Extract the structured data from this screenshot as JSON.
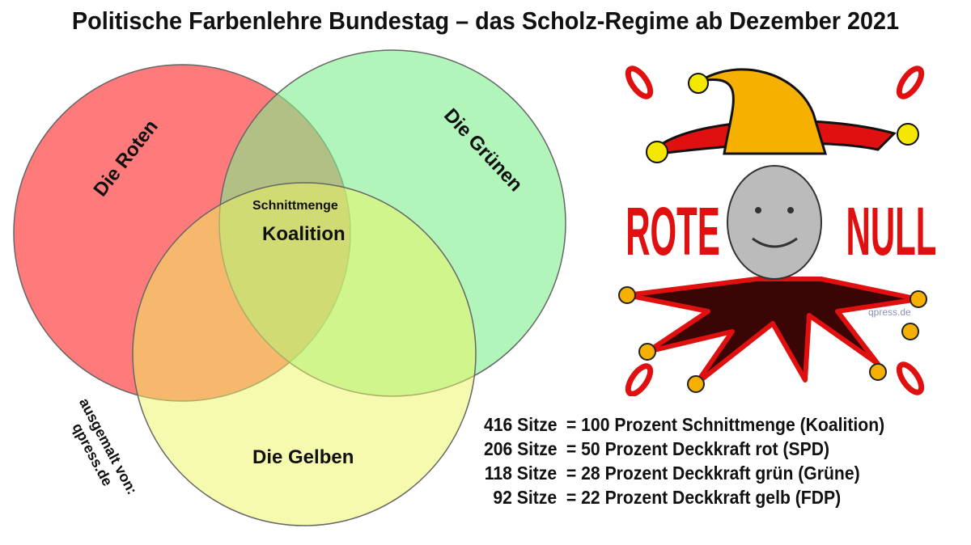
{
  "title": "Politische Farbenlehre Bundestag – das Scholz-Regime ab Dezember 2021",
  "venn": {
    "sets": [
      {
        "label": "Die Roten",
        "color": "#ff5a5a"
      },
      {
        "label": "Die Grünen",
        "color": "#8ef29a"
      },
      {
        "label": "Die Gelben",
        "color": "#f3f58a"
      }
    ],
    "intersection": {
      "small": "Schnittmenge",
      "large": "Koalition"
    },
    "credit": {
      "line1": "ausgemalt von:",
      "line2": "qpress.de"
    }
  },
  "legend": [
    {
      "seats": "416 Sitze",
      "text": "= 100 Prozent Schnittmenge (Koalition)"
    },
    {
      "seats": "206 Sitze",
      "text": "= 50 Prozent Deckkraft rot (SPD)"
    },
    {
      "seats": "118 Sitze",
      "text": "= 28 Prozent Deckkraft grün (Grüne)"
    },
    {
      "seats": "92 Sitze",
      "text": "= 22 Prozent Deckkraft gelb (FDP)"
    }
  ],
  "joker": {
    "left_word": "ROTE",
    "right_word": "NULL",
    "watermark": "qpress.de"
  }
}
